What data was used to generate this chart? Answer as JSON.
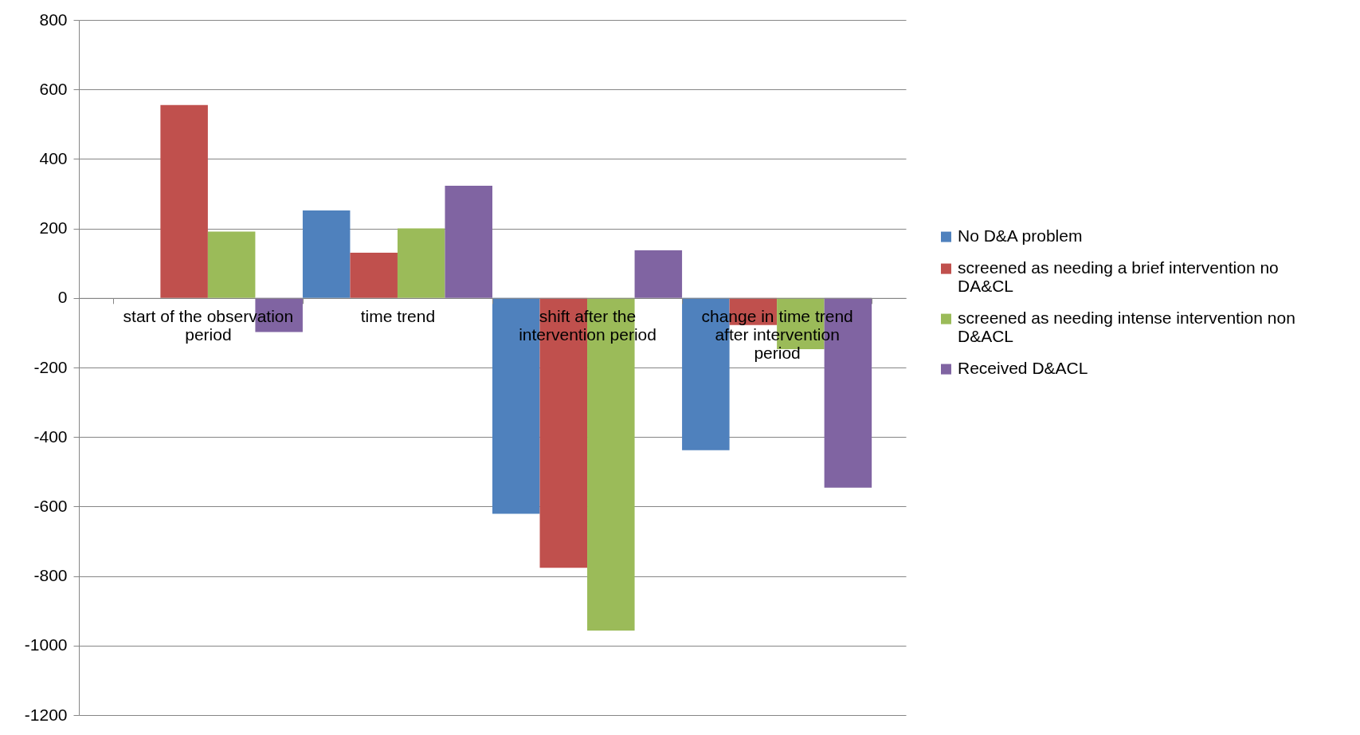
{
  "chart_data": {
    "type": "bar",
    "categories": [
      "start of the observation period",
      "time trend",
      "shift after the intervention period",
      "change in time trend after intervention period"
    ],
    "series": [
      {
        "name": "No D&A problem",
        "color": "#4f81bd",
        "values": [
          null,
          252,
          -621,
          -438
        ]
      },
      {
        "name": "screened as needing a brief intervention no DA&CL",
        "color": "#c0504d",
        "values": [
          555,
          130,
          -776,
          -78
        ]
      },
      {
        "name": "screened as needing intense intervention non D&ACL",
        "color": "#9bbb59",
        "values": [
          191,
          200,
          -957,
          -147
        ]
      },
      {
        "name": "Received D&ACL",
        "color": "#8064a2",
        "values": [
          -98,
          323,
          137,
          -546
        ]
      }
    ],
    "ylim": [
      -1200,
      800
    ],
    "yticks": [
      -1200,
      -1000,
      -800,
      -600,
      -400,
      -200,
      0,
      200,
      400,
      600,
      800
    ],
    "grid": "y",
    "legend": "right"
  }
}
